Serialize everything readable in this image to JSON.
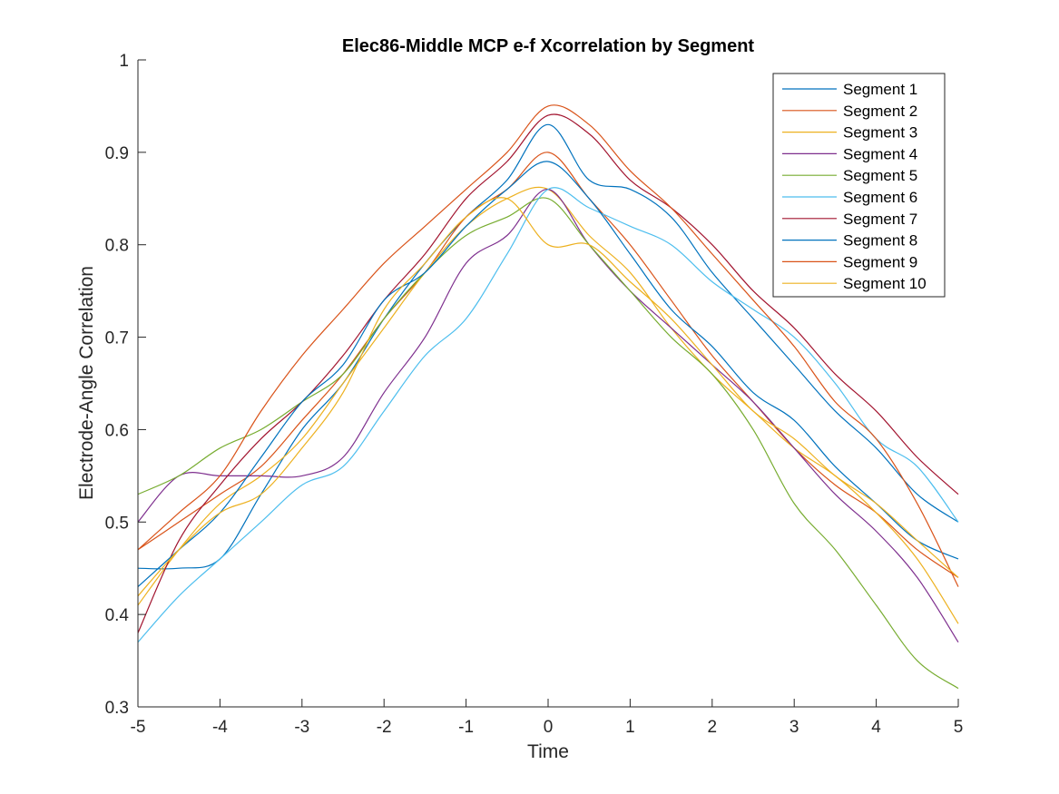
{
  "chart_data": {
    "type": "line",
    "title": "Elec86-Middle MCP e-f Xcorrelation by Segment",
    "xlabel": "Time",
    "ylabel": "Electrode-Angle Correlation",
    "xlim": [
      -5,
      5
    ],
    "ylim": [
      0.3,
      1
    ],
    "xticks": [
      "-5",
      "-4",
      "-3",
      "-2",
      "-1",
      "0",
      "1",
      "2",
      "3",
      "4",
      "5"
    ],
    "yticks": [
      "0.3",
      "0.4",
      "0.5",
      "0.6",
      "0.7",
      "0.8",
      "0.9",
      "1"
    ],
    "grid": false,
    "legend_position": "top-right",
    "x": [
      -5,
      -4.5,
      -4,
      -3.5,
      -3,
      -2.5,
      -2,
      -1.5,
      -1,
      -0.5,
      0,
      0.5,
      1,
      1.5,
      2,
      2.5,
      3,
      3.5,
      4,
      4.5,
      5
    ],
    "series": [
      {
        "name": "Segment 1",
        "color": "#0072BD",
        "values": [
          0.45,
          0.45,
          0.46,
          0.53,
          0.6,
          0.65,
          0.72,
          0.78,
          0.83,
          0.87,
          0.93,
          0.87,
          0.86,
          0.83,
          0.77,
          0.72,
          0.67,
          0.62,
          0.58,
          0.53,
          0.5
        ]
      },
      {
        "name": "Segment 2",
        "color": "#D95319",
        "values": [
          0.47,
          0.5,
          0.53,
          0.56,
          0.61,
          0.66,
          0.72,
          0.77,
          0.83,
          0.86,
          0.9,
          0.85,
          0.8,
          0.74,
          0.68,
          0.63,
          0.58,
          0.54,
          0.51,
          0.47,
          0.44
        ]
      },
      {
        "name": "Segment 3",
        "color": "#EDB120",
        "values": [
          0.41,
          0.47,
          0.52,
          0.55,
          0.59,
          0.65,
          0.71,
          0.77,
          0.82,
          0.85,
          0.86,
          0.81,
          0.77,
          0.71,
          0.66,
          0.62,
          0.58,
          0.55,
          0.51,
          0.46,
          0.39
        ]
      },
      {
        "name": "Segment 4",
        "color": "#7E2F8E",
        "values": [
          0.5,
          0.55,
          0.55,
          0.55,
          0.55,
          0.57,
          0.64,
          0.7,
          0.78,
          0.81,
          0.86,
          0.8,
          0.75,
          0.71,
          0.67,
          0.63,
          0.58,
          0.53,
          0.49,
          0.44,
          0.37
        ]
      },
      {
        "name": "Segment 5",
        "color": "#77AC30",
        "values": [
          0.53,
          0.55,
          0.58,
          0.6,
          0.63,
          0.66,
          0.72,
          0.77,
          0.81,
          0.83,
          0.85,
          0.8,
          0.75,
          0.7,
          0.66,
          0.6,
          0.52,
          0.47,
          0.41,
          0.35,
          0.32
        ]
      },
      {
        "name": "Segment 6",
        "color": "#4DBEEE",
        "values": [
          0.37,
          0.42,
          0.46,
          0.5,
          0.54,
          0.56,
          0.62,
          0.68,
          0.72,
          0.79,
          0.86,
          0.84,
          0.82,
          0.8,
          0.76,
          0.73,
          0.7,
          0.65,
          0.59,
          0.56,
          0.5
        ]
      },
      {
        "name": "Segment 7",
        "color": "#A2142F",
        "values": [
          0.38,
          0.48,
          0.54,
          0.59,
          0.63,
          0.68,
          0.74,
          0.79,
          0.85,
          0.89,
          0.94,
          0.92,
          0.87,
          0.84,
          0.8,
          0.75,
          0.71,
          0.66,
          0.62,
          0.57,
          0.53
        ]
      },
      {
        "name": "Segment 8",
        "color": "#0072BD",
        "values": [
          0.43,
          0.47,
          0.51,
          0.57,
          0.63,
          0.67,
          0.74,
          0.77,
          0.82,
          0.86,
          0.89,
          0.85,
          0.79,
          0.73,
          0.69,
          0.64,
          0.61,
          0.56,
          0.52,
          0.48,
          0.46
        ]
      },
      {
        "name": "Segment 9",
        "color": "#D95319",
        "values": [
          0.47,
          0.51,
          0.55,
          0.62,
          0.68,
          0.73,
          0.78,
          0.82,
          0.86,
          0.9,
          0.95,
          0.93,
          0.88,
          0.84,
          0.79,
          0.74,
          0.69,
          0.63,
          0.59,
          0.52,
          0.43
        ]
      },
      {
        "name": "Segment 10",
        "color": "#EDB120",
        "values": [
          0.42,
          0.47,
          0.51,
          0.53,
          0.58,
          0.64,
          0.73,
          0.78,
          0.83,
          0.85,
          0.8,
          0.8,
          0.76,
          0.72,
          0.67,
          0.62,
          0.59,
          0.55,
          0.52,
          0.48,
          0.44
        ]
      }
    ]
  }
}
